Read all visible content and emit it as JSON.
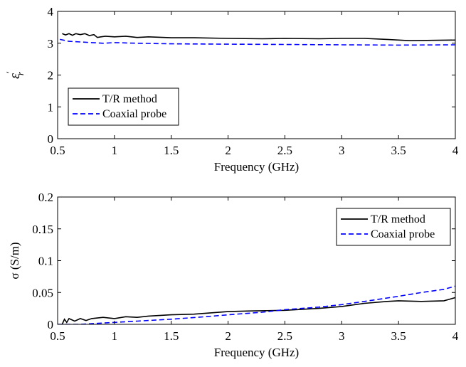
{
  "chart_data": [
    {
      "type": "line",
      "xlabel": "Frequency (GHz)",
      "ylabel_parts": {
        "base": "ε",
        "sup": "′",
        "sub": "r"
      },
      "xlim": [
        0.5,
        4
      ],
      "ylim": [
        0,
        4
      ],
      "xticks": [
        0.5,
        1,
        1.5,
        2,
        2.5,
        3,
        3.5,
        4
      ],
      "xtick_labels": [
        "0.5",
        "1",
        "1.5",
        "2",
        "2.5",
        "3",
        "3.5",
        "4"
      ],
      "yticks": [
        0,
        1,
        2,
        3,
        4
      ],
      "ytick_labels": [
        "0",
        "1",
        "2",
        "3",
        "4"
      ],
      "grid": false,
      "legend_position": "bottom-left",
      "series": [
        {
          "name": "T/R method",
          "color": "#000000",
          "dash": "solid",
          "x": [
            0.54,
            0.57,
            0.6,
            0.63,
            0.66,
            0.7,
            0.74,
            0.78,
            0.82,
            0.85,
            0.88,
            0.92,
            1.0,
            1.1,
            1.2,
            1.3,
            1.5,
            1.7,
            2.0,
            2.3,
            2.5,
            2.8,
            3.0,
            3.2,
            3.4,
            3.5,
            3.6,
            3.8,
            4.0
          ],
          "y": [
            3.3,
            3.26,
            3.3,
            3.25,
            3.3,
            3.27,
            3.3,
            3.24,
            3.27,
            3.18,
            3.2,
            3.22,
            3.2,
            3.22,
            3.18,
            3.2,
            3.17,
            3.17,
            3.15,
            3.14,
            3.15,
            3.14,
            3.15,
            3.15,
            3.12,
            3.1,
            3.08,
            3.09,
            3.1
          ]
        },
        {
          "name": "Coaxial probe",
          "color": "#0000ff",
          "dash": "dashed",
          "x": [
            0.52,
            0.6,
            0.7,
            0.8,
            0.9,
            1.0,
            1.2,
            1.5,
            2.0,
            2.5,
            3.0,
            3.5,
            4.0
          ],
          "y": [
            3.12,
            3.06,
            3.04,
            3.02,
            3.0,
            3.02,
            3.0,
            2.98,
            2.97,
            2.96,
            2.95,
            2.94,
            2.95
          ]
        }
      ]
    },
    {
      "type": "line",
      "xlabel": "Frequency (GHz)",
      "ylabel": "σ (S/m)",
      "xlim": [
        0.5,
        4
      ],
      "ylim": [
        0,
        0.2
      ],
      "xticks": [
        0.5,
        1,
        1.5,
        2,
        2.5,
        3,
        3.5,
        4
      ],
      "xtick_labels": [
        "0.5",
        "1",
        "1.5",
        "2",
        "2.5",
        "3",
        "3.5",
        "4"
      ],
      "yticks": [
        0,
        0.05,
        0.1,
        0.15,
        0.2
      ],
      "ytick_labels": [
        "0",
        "0.05",
        "0.1",
        "0.15",
        "0.2"
      ],
      "grid": false,
      "legend_position": "top-right",
      "series": [
        {
          "name": "T/R method",
          "color": "#000000",
          "dash": "solid",
          "x": [
            0.54,
            0.56,
            0.58,
            0.6,
            0.65,
            0.7,
            0.75,
            0.8,
            0.9,
            1.0,
            1.1,
            1.2,
            1.3,
            1.5,
            1.7,
            2.0,
            2.2,
            2.5,
            2.8,
            3.0,
            3.2,
            3.4,
            3.5,
            3.7,
            3.9,
            4.0
          ],
          "y": [
            0.0,
            0.008,
            0.003,
            0.009,
            0.005,
            0.009,
            0.006,
            0.009,
            0.011,
            0.009,
            0.012,
            0.011,
            0.013,
            0.015,
            0.016,
            0.02,
            0.021,
            0.022,
            0.025,
            0.028,
            0.033,
            0.036,
            0.037,
            0.036,
            0.037,
            0.042
          ]
        },
        {
          "name": "Coaxial probe",
          "color": "#0000ff",
          "dash": "dashed",
          "x": [
            0.5,
            0.7,
            0.8,
            0.9,
            1.0,
            1.2,
            1.5,
            1.8,
            2.0,
            2.3,
            2.5,
            2.8,
            3.0,
            3.2,
            3.5,
            3.7,
            3.9,
            4.0
          ],
          "y": [
            0.0,
            0.0,
            0.001,
            0.002,
            0.003,
            0.005,
            0.008,
            0.012,
            0.015,
            0.019,
            0.023,
            0.027,
            0.031,
            0.036,
            0.044,
            0.05,
            0.055,
            0.06
          ]
        }
      ]
    }
  ]
}
